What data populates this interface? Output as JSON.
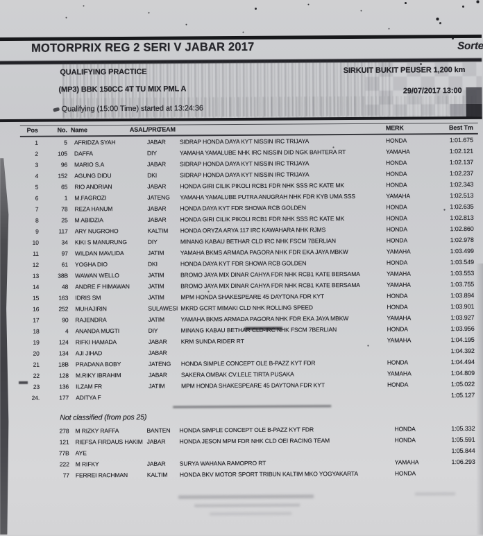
{
  "header": {
    "title": "MOTORPRIX REG 2 SERI V JABAR 2017",
    "sorted_label": "Sorte",
    "session": "QUALIFYING PRACTICE",
    "circuit": "SIRKUIT BUKIT PEUSER 1,200 km",
    "class_line": "(MP3) BBK 150CC 4T TU MIX PML A",
    "datetime": "29/07/2017 13:00",
    "started_line": "Qualifying (15:00 Time) started at 13:24:36"
  },
  "table": {
    "columns": {
      "pos": "Pos",
      "no": "No.",
      "name": "Name",
      "asal": "ASAL/PRC",
      "team": "TEAM",
      "merk": "MERK",
      "best": "Best Tm"
    },
    "rows": [
      {
        "pos": "1",
        "no": "5",
        "name": "AFRIDZA SYAH",
        "asal": "JABAR",
        "team": "SIDRAP HONDA DAYA KYT NISSIN IRC TRIJAYA",
        "merk": "HONDA",
        "best": "1:01.675"
      },
      {
        "pos": "2",
        "no": "105",
        "name": "DAFFA",
        "asal": "DIY",
        "team": "YAMAHA YAMALUBE NHK IRC NISSIN DID NGK BAHTERA RT",
        "merk": "YAMAHA",
        "best": "1:02.121"
      },
      {
        "pos": "3",
        "no": "96",
        "name": "MARIO S.A",
        "asal": "JABAR",
        "team": "SIDRAP HONDA DAYA KYT NISSIN IRC TRIJAYA",
        "merk": "HONDA",
        "best": "1:02.137"
      },
      {
        "pos": "4",
        "no": "152",
        "name": "AGUNG DIDU",
        "asal": "DKI",
        "team": "SIDRAP HONDA DAYA KYT NISSIN IRC TRIJAYA",
        "merk": "HONDA",
        "best": "1:02.237"
      },
      {
        "pos": "5",
        "no": "65",
        "name": "RIO ANDRIAN",
        "asal": "JABAR",
        "team": "HONDA GIRI CILIK PIKOLI RCB1 FDR NHK SSS RC KATE MK",
        "merk": "HONDA",
        "best": "1:02.343"
      },
      {
        "pos": "6",
        "no": "1",
        "name": "M.FAGROZI",
        "asal": "JATENG",
        "team": "YAMAHA YAMALUBE PUTRA ANUGRAH NHK FDR KYB UMA SSS",
        "merk": "YAMAHA",
        "best": "1:02.513"
      },
      {
        "pos": "7",
        "no": "78",
        "name": "REZA HANUM",
        "asal": "JABAR",
        "team": "HONDA DAYA KYT FDR SHOWA RCB GOLDEN",
        "merk": "HONDA",
        "best": "1:02.635"
      },
      {
        "pos": "8",
        "no": "25",
        "name": "M ABIDZIA",
        "asal": "JABAR",
        "team": "HONDA GIRI CILIK PIKOLI RCB1 FDR NHK SSS RC KATE MK",
        "merk": "HONDA",
        "best": "1:02.813"
      },
      {
        "pos": "9",
        "no": "117",
        "name": "ARY NUGROHO",
        "asal": "KALTIM",
        "team": "HONDA ORYZA ARYA 117 IRC KAWAHARA NHK RJMS",
        "merk": "HONDA",
        "best": "1:02.860"
      },
      {
        "pos": "10",
        "no": "34",
        "name": "KIKI S MANURUNG",
        "asal": "DIY",
        "team": "MINANG KABAU BETHAR CLD IRC NHK FSCM 7BERLIAN",
        "merk": "HONDA",
        "best": "1:02.978"
      },
      {
        "pos": "11",
        "no": "97",
        "name": "WILDAN MAVLIDA",
        "asal": "JATIM",
        "team": "YAMAHA BKMS ARMADA PAGORA NHK FDR EKA JAYA MBKW",
        "merk": "YAMAHA",
        "best": "1:03.499"
      },
      {
        "pos": "12",
        "no": "61",
        "name": "YOGHA DIO",
        "asal": "DKI",
        "team": "HONDA DAYA KYT FDR SHOWA RCB GOLDEN",
        "merk": "HONDA",
        "best": "1:03.549"
      },
      {
        "pos": "13",
        "no": "38B",
        "name": "WAWAN WELLO",
        "asal": "JATIM",
        "team": "BROMO JAYA MIX DINAR CAHYA FDR NHK RCB1 KATE BERSAMA",
        "merk": "YAMAHA",
        "best": "1:03.553"
      },
      {
        "pos": "14",
        "no": "48",
        "name": "ANDRE F HIMAWAN",
        "asal": "JATIM",
        "team": "BROMO JAYA MIX DINAR CAHYA FDR NHK RCB1 KATE BERSAMA",
        "merk": "YAMAHA",
        "best": "1:03.755"
      },
      {
        "pos": "15",
        "no": "163",
        "name": "IDRIS SM",
        "asal": "JATIM",
        "team": "MPM HONDA SHAKESPEARE 45 DAYTONA FDR KYT",
        "merk": "HONDA",
        "best": "1:03.894"
      },
      {
        "pos": "16",
        "no": "252",
        "name": "MUHAJIRIN",
        "asal": "SULAWESI",
        "team": "MKRD GCRT MIMAKI CLD NHK ROLLING SPEED",
        "merk": "HONDA",
        "best": "1:03.901"
      },
      {
        "pos": "17",
        "no": "90",
        "name": "RAJENDRA",
        "asal": "JATIM",
        "team": "YAMAHA BKMS ARMADA PAGORA NHK FDR EKA JAYA MBKW",
        "merk": "YAMAHA",
        "best": "1:03.927"
      },
      {
        "pos": "18",
        "no": "4",
        "name": "ANANDA MUGTI",
        "asal": "DIY",
        "team": "MINANG KABAU BETHAR CLD-IRC NHK FSCM 7BERLIAN",
        "merk": "HONDA",
        "best": "1:03.956"
      },
      {
        "pos": "19",
        "no": "124",
        "name": "RIFKI HAMADA",
        "asal": "JABAR",
        "team": "KRM SUNDA RIDER RT",
        "merk": "YAMAHA",
        "best": "1:04.195"
      },
      {
        "pos": "20",
        "no": "134",
        "name": "AJI JIHAD",
        "asal": "JABAR",
        "team": "",
        "merk": "",
        "best": "1:04.392"
      },
      {
        "pos": "21",
        "no": "18B",
        "name": "PRADANA BOBY",
        "asal": "JATENG",
        "team": "HONDA SIMPLE CONCEPT OLE B-PAZZ KYT FDR",
        "merk": "HONDA",
        "best": "1:04.494"
      },
      {
        "pos": "22",
        "no": "128",
        "name": "M.RIKY IBRAHIM",
        "asal": "JABAR",
        "team": "SAKERA OMBAK CV.LELE TIRTA PUSAKA",
        "merk": "YAMAHA",
        "best": "1:04.809"
      },
      {
        "pos": "23",
        "no": "136",
        "name": "ILZAM FR",
        "asal": "JATIM",
        "team": "MPM HONDA SHAKESPEARE 45 DAYTONA FDR KYT",
        "merk": "HONDA",
        "best": "1:05.022"
      },
      {
        "pos": "24.",
        "no": "177",
        "name": "ADITYA F",
        "asal": "",
        "team": "",
        "merk": "",
        "best": "1:05.127"
      }
    ]
  },
  "not_classified": {
    "label": "Not classified (from pos 25)",
    "rows": [
      {
        "no": "278",
        "name": "M RIZKY RAFFA",
        "asal": "BANTEN",
        "team": "HONDA SIMPLE CONCEPT OLE B-PAZZ KYT FDR",
        "merk": "HONDA",
        "best": "1:05.332"
      },
      {
        "no": "121",
        "name": "RIEFSA FIRDAUS HAKIM",
        "asal": "JABAR",
        "team": "HONDA JESON MPM FDR NHK CLD OEI RACING TEAM",
        "merk": "HONDA",
        "best": "1:05.591"
      },
      {
        "no": "77B",
        "name": "AYE",
        "asal": "",
        "team": "",
        "merk": "",
        "best": "1:05.844"
      },
      {
        "no": "222",
        "name": "M RIFKY",
        "asal": "JABAR",
        "team": "SURYA WAHANA RAMOPRO RT",
        "merk": "YAMAHA",
        "best": "1:06.293"
      },
      {
        "no": "77",
        "name": "FERREI RACHMAN",
        "asal": "KALTIM",
        "team": "HONDA BKV MOTOR SPORT TRIBUN KALTIM MKO YOGYAKARTA",
        "merk": "HONDA",
        "best": ""
      }
    ]
  },
  "colors": {
    "paper": "#d2d3d5",
    "ink": "#26262b"
  }
}
